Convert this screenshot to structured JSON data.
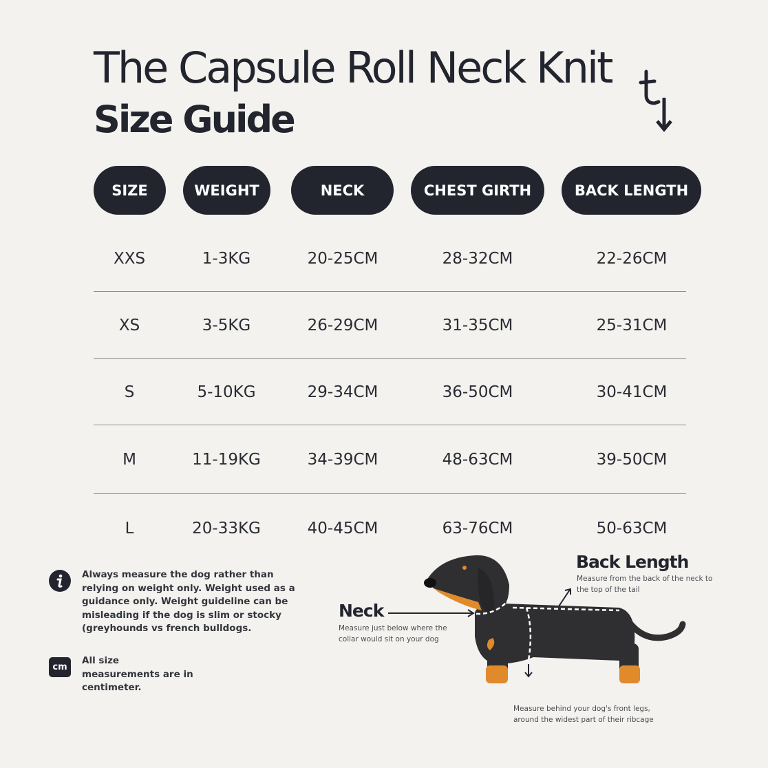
{
  "header": {
    "title": "The Capsule Roll Neck Knit",
    "subtitle": "Size Guide",
    "logo": "t-arrow-logo"
  },
  "table": {
    "columns": [
      "SIZE",
      "WEIGHT",
      "NECK",
      "CHEST GIRTH",
      "BACK LENGTH"
    ],
    "rows": [
      [
        "XXS",
        "1-3KG",
        "20-25CM",
        "28-32CM",
        "22-26CM"
      ],
      [
        "XS",
        "3-5KG",
        "26-29CM",
        "31-35CM",
        "25-31CM"
      ],
      [
        "S",
        "5-10KG",
        "29-34CM",
        "36-50CM",
        "30-41CM"
      ],
      [
        "M",
        "11-19KG",
        "34-39CM",
        "48-63CM",
        "39-50CM"
      ],
      [
        "L",
        "20-33KG",
        "40-45CM",
        "63-76CM",
        "50-63CM"
      ]
    ]
  },
  "notes": {
    "info_icon": "info-icon",
    "info_text": "Always measure the dog rather than relying on weight only. Weight used as a guidance only. Weight guideline can be misleading if the dog is slim or stocky (greyhounds vs french bulldogs.",
    "cm_badge": "cm",
    "cm_text": "All size measurements are in centimeter."
  },
  "diagram": {
    "neck_label": "Neck",
    "neck_desc": "Measure just below where the collar would sit on your dog",
    "back_label": "Back Length",
    "back_desc": "Measure from the back of the neck to the top of the tail",
    "chest_desc": "Measure behind your dog's front legs, around the widest part of their ribcage"
  },
  "colors": {
    "background": "#f3f2ef",
    "dark": "#22252e",
    "dog_body": "#2f2f31",
    "dog_tan": "#e08a2c"
  }
}
